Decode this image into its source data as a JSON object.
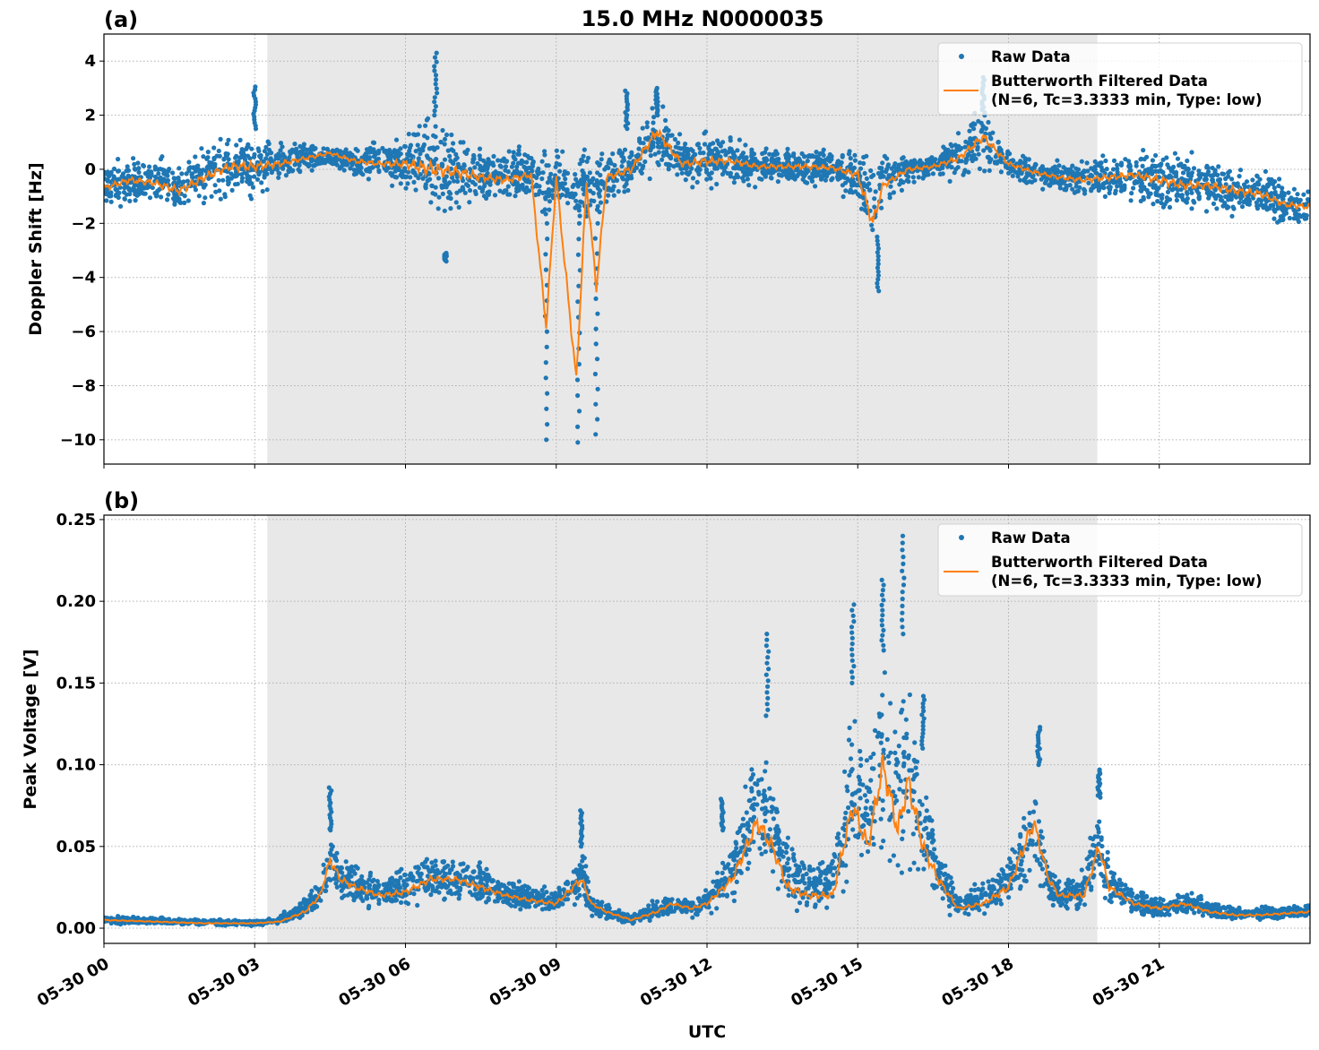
{
  "title": "15.0 MHz N0000035",
  "colors": {
    "raw": "#1f77b4",
    "filtered": "#ff7f0e",
    "shade": "#e8e8e8",
    "grid": "#b0b0b0"
  },
  "chart_data": [
    {
      "type": "scatter",
      "panel_label": "(a)",
      "ylabel": "Doppler Shift [Hz]",
      "xlabel": "",
      "xlim_hours": [
        0,
        24
      ],
      "ylim": [
        -10.9,
        5.0
      ],
      "yticks": [
        -10,
        -8,
        -6,
        -4,
        -2,
        0,
        2,
        4
      ],
      "ytick_labels": [
        "−10",
        "−8",
        "−6",
        "−4",
        "−2",
        "0",
        "2",
        "4"
      ],
      "grid": true,
      "shaded_interval_utc": [
        "05-30 03:15",
        "05-30 19:46"
      ],
      "legend_placement": "upper right",
      "legend": [
        "Raw Data",
        "Butterworth Filtered Data",
        "(N=6, Tc=3.3333 min, Type: low)"
      ],
      "series_points": "[hour, filtered, raw_low, raw_high]",
      "points": [
        [
          0,
          -0.7,
          -1.6,
          0.4
        ],
        [
          0.5,
          -0.4,
          -1.5,
          0.6
        ],
        [
          1,
          -0.5,
          -1.6,
          0.7
        ],
        [
          1.5,
          -0.8,
          -2.0,
          0.5
        ],
        [
          2,
          -0.3,
          -1.6,
          1.2
        ],
        [
          2.5,
          0.1,
          -1.4,
          1.6
        ],
        [
          3,
          0.1,
          -1.4,
          1.6
        ],
        [
          3.5,
          0.2,
          -0.8,
          1.3
        ],
        [
          4,
          0.4,
          -0.3,
          1.1
        ],
        [
          4.5,
          0.6,
          0.0,
          1.0
        ],
        [
          5,
          0.3,
          -0.6,
          1.0
        ],
        [
          5.5,
          0.2,
          -0.5,
          1.3
        ],
        [
          6,
          0.2,
          -1.2,
          1.5
        ],
        [
          6.5,
          0.0,
          -2.4,
          2.6
        ],
        [
          7,
          -0.1,
          -2.0,
          1.8
        ],
        [
          7.5,
          -0.3,
          -1.4,
          1.1
        ],
        [
          8,
          -0.4,
          -1.6,
          1.0
        ],
        [
          8.5,
          -0.2,
          -1.3,
          1.0
        ],
        [
          8.8,
          -5.8,
          -2.5,
          1.0
        ],
        [
          9,
          -0.3,
          -1.8,
          1.2
        ],
        [
          9.4,
          -7.8,
          -2.6,
          1.3
        ],
        [
          9.6,
          -0.5,
          -2.4,
          1.2
        ],
        [
          9.8,
          -4.4,
          -2.4,
          1.0
        ],
        [
          10,
          -0.3,
          -1.6,
          1.0
        ],
        [
          10.5,
          0.0,
          -1.0,
          1.2
        ],
        [
          11,
          1.4,
          -0.5,
          2.9
        ],
        [
          11.5,
          0.2,
          -0.8,
          1.4
        ],
        [
          12,
          0.3,
          -1.0,
          1.6
        ],
        [
          12.5,
          0.3,
          -0.6,
          1.3
        ],
        [
          13,
          0.1,
          -0.8,
          1.0
        ],
        [
          13.5,
          0.1,
          -0.6,
          0.9
        ],
        [
          14,
          0.1,
          -0.9,
          1.0
        ],
        [
          14.5,
          0.05,
          -0.8,
          0.9
        ],
        [
          15,
          -0.2,
          -1.6,
          0.9
        ],
        [
          15.3,
          -2.0,
          -3.5,
          1.0
        ],
        [
          15.5,
          -0.6,
          -1.5,
          0.8
        ],
        [
          16,
          0.0,
          -0.7,
          0.8
        ],
        [
          16.5,
          0.1,
          -0.5,
          0.7
        ],
        [
          17,
          0.4,
          -0.5,
          1.6
        ],
        [
          17.5,
          1.2,
          -0.4,
          2.6
        ],
        [
          18,
          0.2,
          -0.5,
          0.9
        ],
        [
          18.5,
          -0.1,
          -0.8,
          0.6
        ],
        [
          19,
          -0.3,
          -1.0,
          0.5
        ],
        [
          19.5,
          -0.4,
          -1.2,
          0.5
        ],
        [
          20,
          -0.3,
          -1.3,
          0.8
        ],
        [
          20.5,
          -0.2,
          -1.3,
          0.9
        ],
        [
          21,
          -0.4,
          -1.8,
          1.0
        ],
        [
          21.5,
          -0.6,
          -1.8,
          0.9
        ],
        [
          22,
          -0.6,
          -1.9,
          0.8
        ],
        [
          22.5,
          -0.8,
          -2.1,
          0.4
        ],
        [
          23,
          -0.9,
          -2.0,
          0.3
        ],
        [
          23.5,
          -1.3,
          -2.4,
          -0.3
        ],
        [
          24,
          -1.4,
          -2.3,
          -0.5
        ]
      ],
      "raw_spike_columns": [
        [
          3.0,
          1.5,
          3.05
        ],
        [
          6.6,
          2.0,
          4.3
        ],
        [
          6.8,
          -3.4,
          -3.1
        ],
        [
          8.8,
          -10.0,
          -2.0
        ],
        [
          9.45,
          -10.1,
          -2.0
        ],
        [
          9.8,
          -9.8,
          -2.0
        ],
        [
          10.4,
          1.5,
          2.9
        ],
        [
          11.0,
          2.0,
          3.0
        ],
        [
          15.4,
          -4.5,
          -2.5
        ],
        [
          17.5,
          2.0,
          3.4
        ]
      ]
    },
    {
      "type": "scatter",
      "panel_label": "(b)",
      "ylabel": "Peak Voltage [V]",
      "xlabel": "UTC",
      "xlim_hours": [
        0,
        24
      ],
      "ylim": [
        -0.0093,
        0.2527
      ],
      "yticks": [
        0,
        0.05,
        0.1,
        0.15,
        0.2,
        0.25
      ],
      "ytick_labels": [
        "0.00",
        "0.05",
        "0.10",
        "0.15",
        "0.20",
        "0.25"
      ],
      "xticks_hours": [
        0,
        3,
        6,
        9,
        12,
        15,
        18,
        21
      ],
      "xtick_labels": [
        "05-30 00",
        "05-30 03",
        "05-30 06",
        "05-30 09",
        "05-30 12",
        "05-30 15",
        "05-30 18",
        "05-30 21"
      ],
      "grid": true,
      "shaded_interval_utc": [
        "05-30 03:15",
        "05-30 19:46"
      ],
      "legend_placement": "upper right",
      "legend": [
        "Raw Data",
        "Butterworth Filtered Data",
        "(N=6, Tc=3.3333 min, Type: low)"
      ],
      "series_points": "[hour, filtered, raw_low, raw_high]",
      "points": [
        [
          0,
          0.005,
          0.002,
          0.008
        ],
        [
          1,
          0.004,
          0.002,
          0.007
        ],
        [
          2,
          0.003,
          0.001,
          0.006
        ],
        [
          3,
          0.003,
          0.001,
          0.005
        ],
        [
          3.5,
          0.004,
          0.002,
          0.008
        ],
        [
          4,
          0.01,
          0.004,
          0.02
        ],
        [
          4.3,
          0.02,
          0.008,
          0.035
        ],
        [
          4.5,
          0.042,
          0.015,
          0.07
        ],
        [
          4.7,
          0.03,
          0.012,
          0.05
        ],
        [
          5,
          0.025,
          0.01,
          0.045
        ],
        [
          5.5,
          0.02,
          0.008,
          0.035
        ],
        [
          6,
          0.022,
          0.01,
          0.04
        ],
        [
          6.5,
          0.03,
          0.012,
          0.048
        ],
        [
          7,
          0.03,
          0.014,
          0.045
        ],
        [
          7.5,
          0.025,
          0.012,
          0.045
        ],
        [
          8,
          0.02,
          0.01,
          0.03
        ],
        [
          8.5,
          0.017,
          0.008,
          0.03
        ],
        [
          9,
          0.015,
          0.007,
          0.025
        ],
        [
          9.5,
          0.03,
          0.01,
          0.06
        ],
        [
          9.7,
          0.015,
          0.006,
          0.022
        ],
        [
          10,
          0.01,
          0.004,
          0.016
        ],
        [
          10.5,
          0.005,
          0.002,
          0.01
        ],
        [
          11,
          0.01,
          0.004,
          0.02
        ],
        [
          11.3,
          0.015,
          0.006,
          0.022
        ],
        [
          11.7,
          0.012,
          0.005,
          0.02
        ],
        [
          12,
          0.015,
          0.006,
          0.025
        ],
        [
          12.5,
          0.03,
          0.012,
          0.06
        ],
        [
          13,
          0.065,
          0.025,
          0.13
        ],
        [
          13.3,
          0.05,
          0.02,
          0.1
        ],
        [
          13.6,
          0.025,
          0.01,
          0.06
        ],
        [
          14,
          0.02,
          0.008,
          0.045
        ],
        [
          14.5,
          0.02,
          0.008,
          0.05
        ],
        [
          14.9,
          0.075,
          0.025,
          0.15
        ],
        [
          15.2,
          0.05,
          0.02,
          0.12
        ],
        [
          15.5,
          0.1,
          0.03,
          0.18
        ],
        [
          15.8,
          0.06,
          0.02,
          0.16
        ],
        [
          16,
          0.09,
          0.03,
          0.18
        ],
        [
          16.3,
          0.05,
          0.015,
          0.11
        ],
        [
          16.6,
          0.03,
          0.01,
          0.06
        ],
        [
          17,
          0.012,
          0.005,
          0.025
        ],
        [
          17.5,
          0.015,
          0.006,
          0.03
        ],
        [
          18,
          0.025,
          0.008,
          0.05
        ],
        [
          18.5,
          0.065,
          0.02,
          0.11
        ],
        [
          18.8,
          0.03,
          0.01,
          0.05
        ],
        [
          19,
          0.02,
          0.008,
          0.035
        ],
        [
          19.5,
          0.02,
          0.008,
          0.04
        ],
        [
          19.8,
          0.05,
          0.015,
          0.085
        ],
        [
          20,
          0.025,
          0.01,
          0.045
        ],
        [
          20.5,
          0.015,
          0.006,
          0.025
        ],
        [
          21,
          0.012,
          0.005,
          0.02
        ],
        [
          21.5,
          0.015,
          0.006,
          0.025
        ],
        [
          22,
          0.01,
          0.005,
          0.018
        ],
        [
          22.5,
          0.008,
          0.004,
          0.015
        ],
        [
          23,
          0.008,
          0.004,
          0.014
        ],
        [
          24,
          0.01,
          0.005,
          0.016
        ]
      ],
      "raw_spike_columns": [
        [
          4.5,
          0.06,
          0.086
        ],
        [
          9.5,
          0.05,
          0.072
        ],
        [
          12.3,
          0.06,
          0.079
        ],
        [
          13.2,
          0.13,
          0.18
        ],
        [
          14.9,
          0.15,
          0.198
        ],
        [
          15.5,
          0.17,
          0.213
        ],
        [
          15.9,
          0.18,
          0.24
        ],
        [
          16.3,
          0.11,
          0.142
        ],
        [
          18.6,
          0.1,
          0.123
        ],
        [
          19.8,
          0.08,
          0.097
        ]
      ]
    }
  ]
}
